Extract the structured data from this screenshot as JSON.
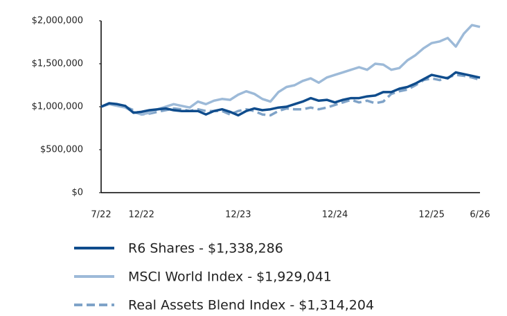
{
  "chart_data": {
    "type": "line",
    "categories": [
      "7/22",
      null,
      null,
      null,
      null,
      "12/22",
      null,
      null,
      null,
      null,
      null,
      null,
      null,
      null,
      null,
      null,
      null,
      "12/23",
      null,
      null,
      null,
      null,
      null,
      null,
      null,
      null,
      null,
      null,
      null,
      "12/24",
      null,
      null,
      null,
      null,
      null,
      null,
      null,
      null,
      null,
      null,
      null,
      "12/25",
      null,
      null,
      null,
      null,
      null,
      "6/26"
    ],
    "series": [
      {
        "name": "R6 Shares - $1,338,286",
        "color": "#0f4c8c",
        "style": "solid",
        "values": [
          1000000,
          1040000,
          1030000,
          1010000,
          930000,
          940000,
          960000,
          970000,
          980000,
          960000,
          950000,
          950000,
          950000,
          910000,
          950000,
          970000,
          940000,
          900000,
          950000,
          980000,
          960000,
          970000,
          990000,
          1000000,
          1030000,
          1060000,
          1100000,
          1070000,
          1080000,
          1050000,
          1080000,
          1100000,
          1100000,
          1120000,
          1130000,
          1170000,
          1170000,
          1210000,
          1230000,
          1270000,
          1320000,
          1370000,
          1350000,
          1330000,
          1400000,
          1380000,
          1360000,
          1338286
        ]
      },
      {
        "name": "MSCI World Index - $1,929,041",
        "color": "#9dbad8",
        "style": "solid",
        "values": [
          1000000,
          1030000,
          1010000,
          990000,
          940000,
          910000,
          930000,
          970000,
          1000000,
          1030000,
          1010000,
          990000,
          1060000,
          1030000,
          1070000,
          1090000,
          1080000,
          1140000,
          1180000,
          1150000,
          1090000,
          1060000,
          1170000,
          1230000,
          1250000,
          1300000,
          1330000,
          1280000,
          1340000,
          1370000,
          1400000,
          1430000,
          1460000,
          1430000,
          1500000,
          1490000,
          1430000,
          1450000,
          1540000,
          1600000,
          1680000,
          1740000,
          1760000,
          1800000,
          1700000,
          1850000,
          1950000,
          1929041
        ]
      },
      {
        "name": "Real Assets Blend Index - $1,314,204",
        "color": "#7fa3c8",
        "style": "dashed",
        "values": [
          1000000,
          1030000,
          1020000,
          1000000,
          960000,
          910000,
          920000,
          940000,
          960000,
          980000,
          970000,
          950000,
          970000,
          950000,
          950000,
          950000,
          910000,
          950000,
          970000,
          950000,
          910000,
          900000,
          950000,
          980000,
          970000,
          970000,
          990000,
          970000,
          990000,
          1020000,
          1050000,
          1080000,
          1050000,
          1070000,
          1040000,
          1060000,
          1150000,
          1180000,
          1200000,
          1250000,
          1310000,
          1330000,
          1310000,
          1340000,
          1370000,
          1360000,
          1340000,
          1314204
        ]
      }
    ],
    "ylim": [
      0,
      2000000
    ],
    "yticks": [
      {
        "value": 0,
        "label": "$0"
      },
      {
        "value": 500000,
        "label": "$500,000"
      },
      {
        "value": 1000000,
        "label": "$1,000,000"
      },
      {
        "value": 1500000,
        "label": "$1,500,000"
      },
      {
        "value": 2000000,
        "label": "$2,000,000"
      }
    ],
    "grid": false
  }
}
